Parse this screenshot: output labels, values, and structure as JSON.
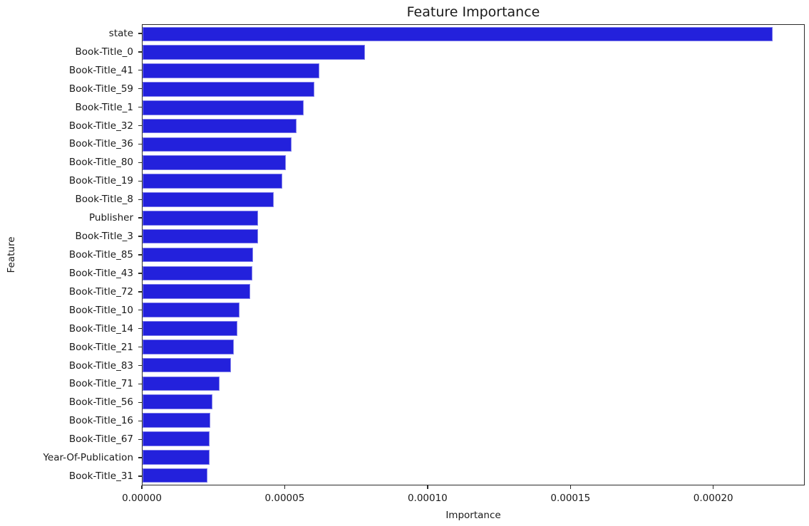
{
  "chart_data": {
    "type": "bar",
    "orientation": "horizontal",
    "title": "Feature Importance",
    "xlabel": "Importance",
    "ylabel": "Feature",
    "categories": [
      "state",
      "Book-Title_0",
      "Book-Title_41",
      "Book-Title_59",
      "Book-Title_1",
      "Book-Title_32",
      "Book-Title_36",
      "Book-Title_80",
      "Book-Title_19",
      "Book-Title_8",
      "Publisher",
      "Book-Title_3",
      "Book-Title_85",
      "Book-Title_43",
      "Book-Title_72",
      "Book-Title_10",
      "Book-Title_14",
      "Book-Title_21",
      "Book-Title_83",
      "Book-Title_71",
      "Book-Title_56",
      "Book-Title_16",
      "Book-Title_67",
      "Year-Of-Publication",
      "Book-Title_31"
    ],
    "values": [
      0.000221,
      7.8e-05,
      6.19e-05,
      6.03e-05,
      5.64e-05,
      5.41e-05,
      5.22e-05,
      5.03e-05,
      4.91e-05,
      4.6e-05,
      4.05e-05,
      4.04e-05,
      3.87e-05,
      3.86e-05,
      3.77e-05,
      3.41e-05,
      3.32e-05,
      3.21e-05,
      3.11e-05,
      2.69e-05,
      2.45e-05,
      2.38e-05,
      2.36e-05,
      2.36e-05,
      2.27e-05
    ],
    "xlim": [
      0,
      0.000232
    ],
    "xticks": [
      0,
      5e-05,
      0.0001,
      0.00015,
      0.0002
    ],
    "xtick_labels": [
      "0.00000",
      "0.00005",
      "0.00010",
      "0.00015",
      "0.00020"
    ],
    "bar_color": "#2321DC",
    "spine_color": "#2b2b2b",
    "grid": false,
    "legend": null
  }
}
